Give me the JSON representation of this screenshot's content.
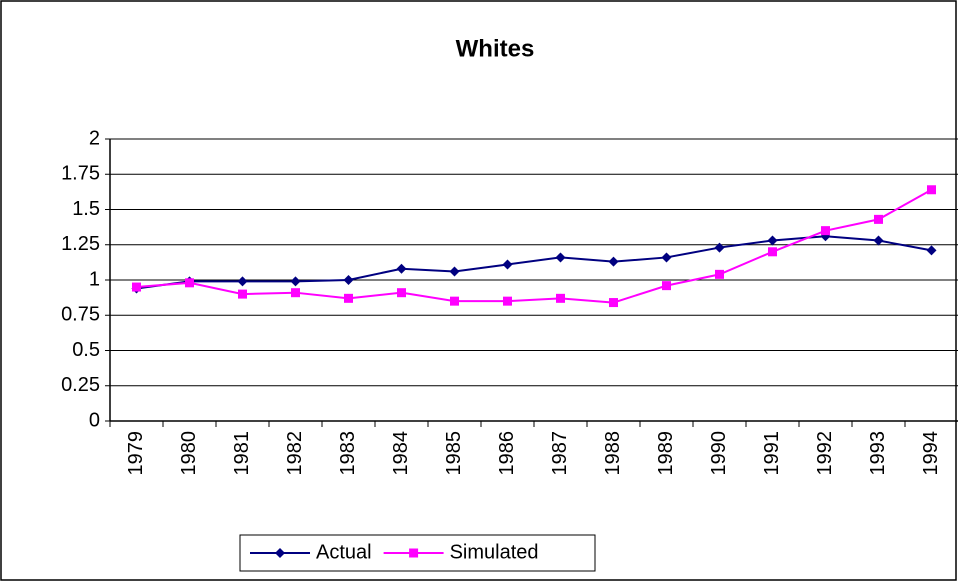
{
  "chart_data": {
    "type": "line",
    "title": "Whites",
    "categories": [
      "1979",
      "1980",
      "1981",
      "1982",
      "1983",
      "1984",
      "1985",
      "1986",
      "1987",
      "1988",
      "1989",
      "1990",
      "1991",
      "1992",
      "1993",
      "1994"
    ],
    "series": [
      {
        "name": "Actual",
        "color": "#000080",
        "marker": "diamond",
        "values": [
          0.94,
          0.99,
          0.99,
          0.99,
          1.0,
          1.08,
          1.06,
          1.11,
          1.16,
          1.13,
          1.16,
          1.23,
          1.28,
          1.31,
          1.28,
          1.21
        ]
      },
      {
        "name": "Simulated",
        "color": "#ff00ff",
        "marker": "square",
        "values": [
          0.95,
          0.98,
          0.9,
          0.91,
          0.87,
          0.91,
          0.85,
          0.85,
          0.87,
          0.84,
          0.96,
          1.04,
          1.2,
          1.35,
          1.43,
          1.64
        ]
      }
    ],
    "ylim": [
      0,
      2
    ],
    "yticks": [
      0,
      0.25,
      0.5,
      0.75,
      1,
      1.25,
      1.5,
      1.75,
      2
    ],
    "grid": true,
    "legend": "bottom"
  }
}
